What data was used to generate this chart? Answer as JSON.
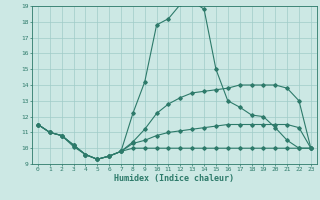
{
  "xlabel": "Humidex (Indice chaleur)",
  "x": [
    0,
    1,
    2,
    3,
    4,
    5,
    6,
    7,
    8,
    9,
    10,
    11,
    12,
    13,
    14,
    15,
    16,
    17,
    18,
    19,
    20,
    21,
    22,
    23
  ],
  "line_main": [
    11.5,
    11.0,
    10.8,
    10.2,
    9.6,
    9.3,
    9.5,
    9.8,
    12.2,
    14.2,
    17.8,
    18.2,
    19.1,
    19.3,
    18.8,
    15.0,
    13.0,
    12.6,
    12.1,
    12.0,
    11.3,
    10.5,
    10.0,
    10.0
  ],
  "line_flat": [
    11.5,
    11.0,
    10.8,
    10.1,
    9.6,
    9.3,
    9.5,
    9.8,
    10.0,
    10.0,
    10.0,
    10.0,
    10.0,
    10.0,
    10.0,
    10.0,
    10.0,
    10.0,
    10.0,
    10.0,
    10.0,
    10.0,
    10.0,
    10.0
  ],
  "line_low": [
    11.5,
    11.0,
    10.8,
    10.2,
    9.6,
    9.3,
    9.5,
    9.8,
    10.3,
    10.5,
    10.8,
    11.0,
    11.1,
    11.2,
    11.3,
    11.4,
    11.5,
    11.5,
    11.5,
    11.5,
    11.5,
    11.5,
    11.3,
    10.0
  ],
  "line_mid": [
    11.5,
    11.0,
    10.8,
    10.2,
    9.6,
    9.3,
    9.5,
    9.8,
    10.4,
    11.2,
    12.2,
    12.8,
    13.2,
    13.5,
    13.6,
    13.7,
    13.8,
    14.0,
    14.0,
    14.0,
    14.0,
    13.8,
    13.0,
    10.0
  ],
  "line_color": "#2d7a6a",
  "bg_color": "#cce8e4",
  "grid_color": "#a0ccc8",
  "ylim": [
    9,
    19
  ],
  "xlim": [
    -0.5,
    23.5
  ],
  "yticks": [
    9,
    10,
    11,
    12,
    13,
    14,
    15,
    16,
    17,
    18,
    19
  ],
  "xticks": [
    0,
    1,
    2,
    3,
    4,
    5,
    6,
    7,
    8,
    9,
    10,
    11,
    12,
    13,
    14,
    15,
    16,
    17,
    18,
    19,
    20,
    21,
    22,
    23
  ]
}
